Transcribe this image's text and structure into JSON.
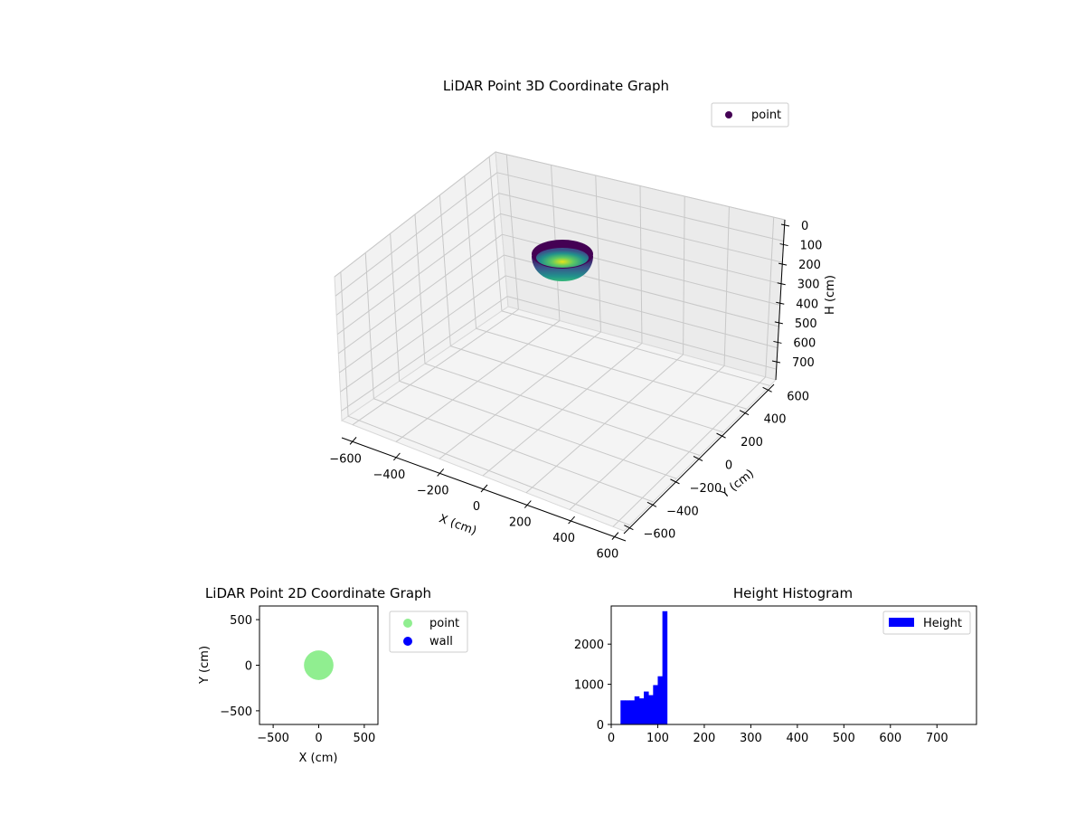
{
  "chart_data": [
    {
      "type": "scatter",
      "projection": "3d",
      "title": "LiDAR Point 3D Coordinate Graph",
      "xlabel": "X (cm)",
      "ylabel": "Y (cm)",
      "zlabel": "H (cm)",
      "xlim": [
        -650,
        650
      ],
      "ylim": [
        -650,
        650
      ],
      "zlim": [
        750,
        0
      ],
      "xticks": [
        "−600",
        "−400",
        "−200",
        "0",
        "200",
        "400",
        "600"
      ],
      "yticks": [
        "−600",
        "−400",
        "−200",
        "0",
        "200",
        "400",
        "600"
      ],
      "zticks": [
        "0",
        "100",
        "200",
        "300",
        "400",
        "500",
        "600",
        "700"
      ],
      "grid": true,
      "legend": {
        "placement": "top-right",
        "entries": [
          {
            "name": "point",
            "color": "#440154"
          }
        ]
      },
      "colormap": "viridis",
      "points": {
        "shape": "hemisphere",
        "center": [
          0,
          0
        ],
        "radius_cm": 120,
        "h_range": [
          0,
          120
        ]
      }
    },
    {
      "type": "scatter",
      "title": "LiDAR Point 2D Coordinate Graph",
      "xlabel": "X (cm)",
      "ylabel": "Y (cm)",
      "xlim": [
        -650,
        650
      ],
      "ylim": [
        -650,
        650
      ],
      "xticks": [
        "−500",
        "0",
        "500"
      ],
      "yticks": [
        "−500",
        "0",
        "500"
      ],
      "legend": {
        "placement": "outside-right",
        "entries": [
          {
            "name": "point",
            "color": "#90ee90"
          },
          {
            "name": "wall",
            "color": "#0000ff"
          }
        ]
      },
      "points": {
        "shape": "disk",
        "center": [
          0,
          0
        ],
        "radius_cm": 120,
        "color": "#90ee90"
      }
    },
    {
      "type": "bar",
      "title": "Height Histogram",
      "xlim": [
        0,
        785
      ],
      "ylim": [
        0,
        2950
      ],
      "xticks": [
        "0",
        "100",
        "200",
        "300",
        "400",
        "500",
        "600",
        "700"
      ],
      "yticks": [
        "0",
        "1000",
        "2000"
      ],
      "legend": {
        "placement": "top-right",
        "entries": [
          {
            "name": "Height",
            "color": "#0000ff"
          }
        ]
      },
      "bins": [
        {
          "x0": 20,
          "x1": 30,
          "count": 600
        },
        {
          "x0": 30,
          "x1": 40,
          "count": 600
        },
        {
          "x0": 40,
          "x1": 50,
          "count": 600
        },
        {
          "x0": 50,
          "x1": 60,
          "count": 700
        },
        {
          "x0": 60,
          "x1": 70,
          "count": 650
        },
        {
          "x0": 70,
          "x1": 80,
          "count": 820
        },
        {
          "x0": 80,
          "x1": 90,
          "count": 730
        },
        {
          "x0": 90,
          "x1": 100,
          "count": 980
        },
        {
          "x0": 100,
          "x1": 110,
          "count": 1200
        },
        {
          "x0": 110,
          "x1": 120,
          "count": 2820
        }
      ]
    }
  ]
}
